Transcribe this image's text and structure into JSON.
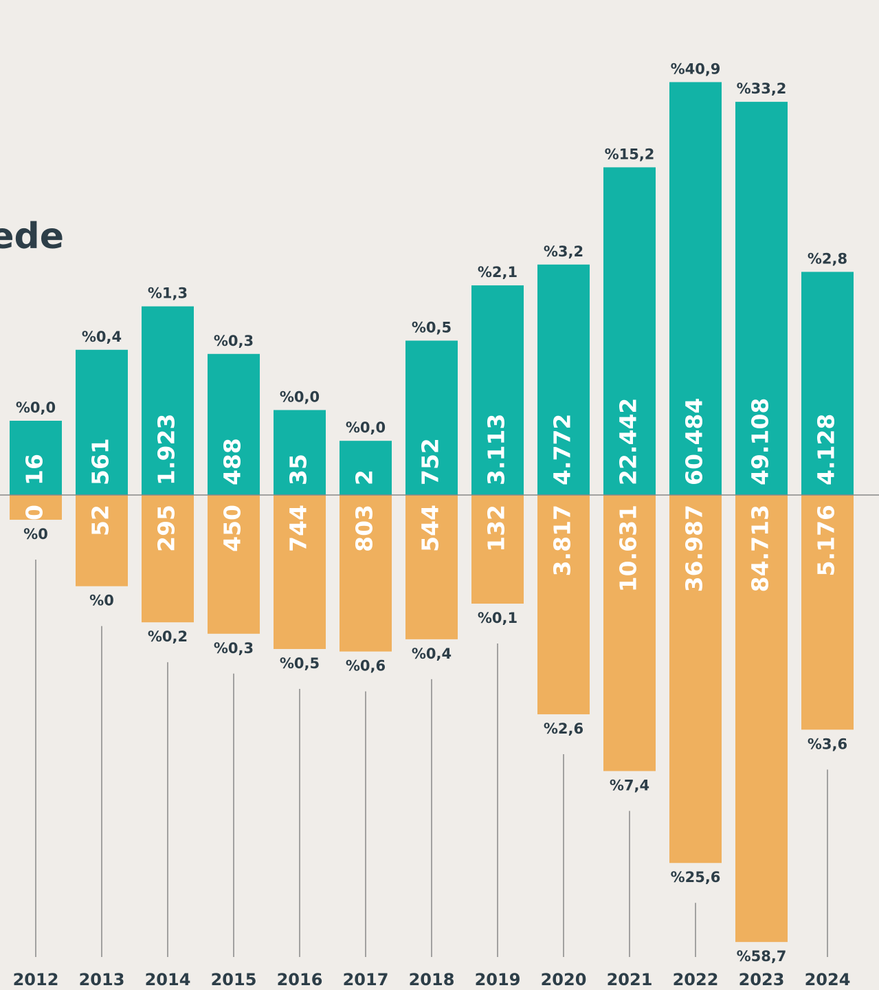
{
  "chart_data": {
    "type": "diverging_bar",
    "title": "ede",
    "categories": [
      "2012",
      "2013",
      "2014",
      "2015",
      "2016",
      "2017",
      "2018",
      "2019",
      "2020",
      "2021",
      "2022",
      "2023",
      "2024"
    ],
    "series": [
      {
        "color": "#12b3a6",
        "direction": "up",
        "values": [
          16,
          561,
          1923,
          488,
          35,
          2,
          752,
          3113,
          4772,
          22442,
          60484,
          49108,
          4128
        ],
        "value_labels": [
          "16",
          "561",
          "1.923",
          "488",
          "35",
          "2",
          "752",
          "3.113",
          "4.772",
          "22.442",
          "60.484",
          "49.108",
          "4.128"
        ],
        "percentages": [
          0.0,
          0.4,
          1.3,
          0.3,
          0.0,
          0.0,
          0.5,
          2.1,
          3.2,
          15.2,
          40.9,
          33.2,
          2.8
        ],
        "percentage_labels": [
          "%0,0",
          "%0,4",
          "%1,3",
          "%0,3",
          "%0,0",
          "%0,0",
          "%0,5",
          "%2,1",
          "%3,2",
          "%15,2",
          "%40,9",
          "%33,2",
          "%2,8"
        ]
      },
      {
        "color": "#efb05e",
        "direction": "down",
        "values": [
          0,
          52,
          295,
          450,
          744,
          803,
          544,
          132,
          3817,
          10631,
          36987,
          84713,
          5176
        ],
        "value_labels": [
          "0",
          "52",
          "295",
          "450",
          "744",
          "803",
          "544",
          "132",
          "3.817",
          "10.631",
          "36.987",
          "84.713",
          "5.176"
        ],
        "percentages": [
          0,
          0,
          0.2,
          0.3,
          0.5,
          0.6,
          0.4,
          0.1,
          2.6,
          7.4,
          25.6,
          58.7,
          3.6
        ],
        "percentage_labels": [
          "%0",
          "%0",
          "%0,2",
          "%0,3",
          "%0,5",
          "%0,6",
          "%0,4",
          "%0,1",
          "%2,6",
          "%7,4",
          "%25,6",
          "%58,7",
          "%3,6"
        ]
      }
    ]
  }
}
